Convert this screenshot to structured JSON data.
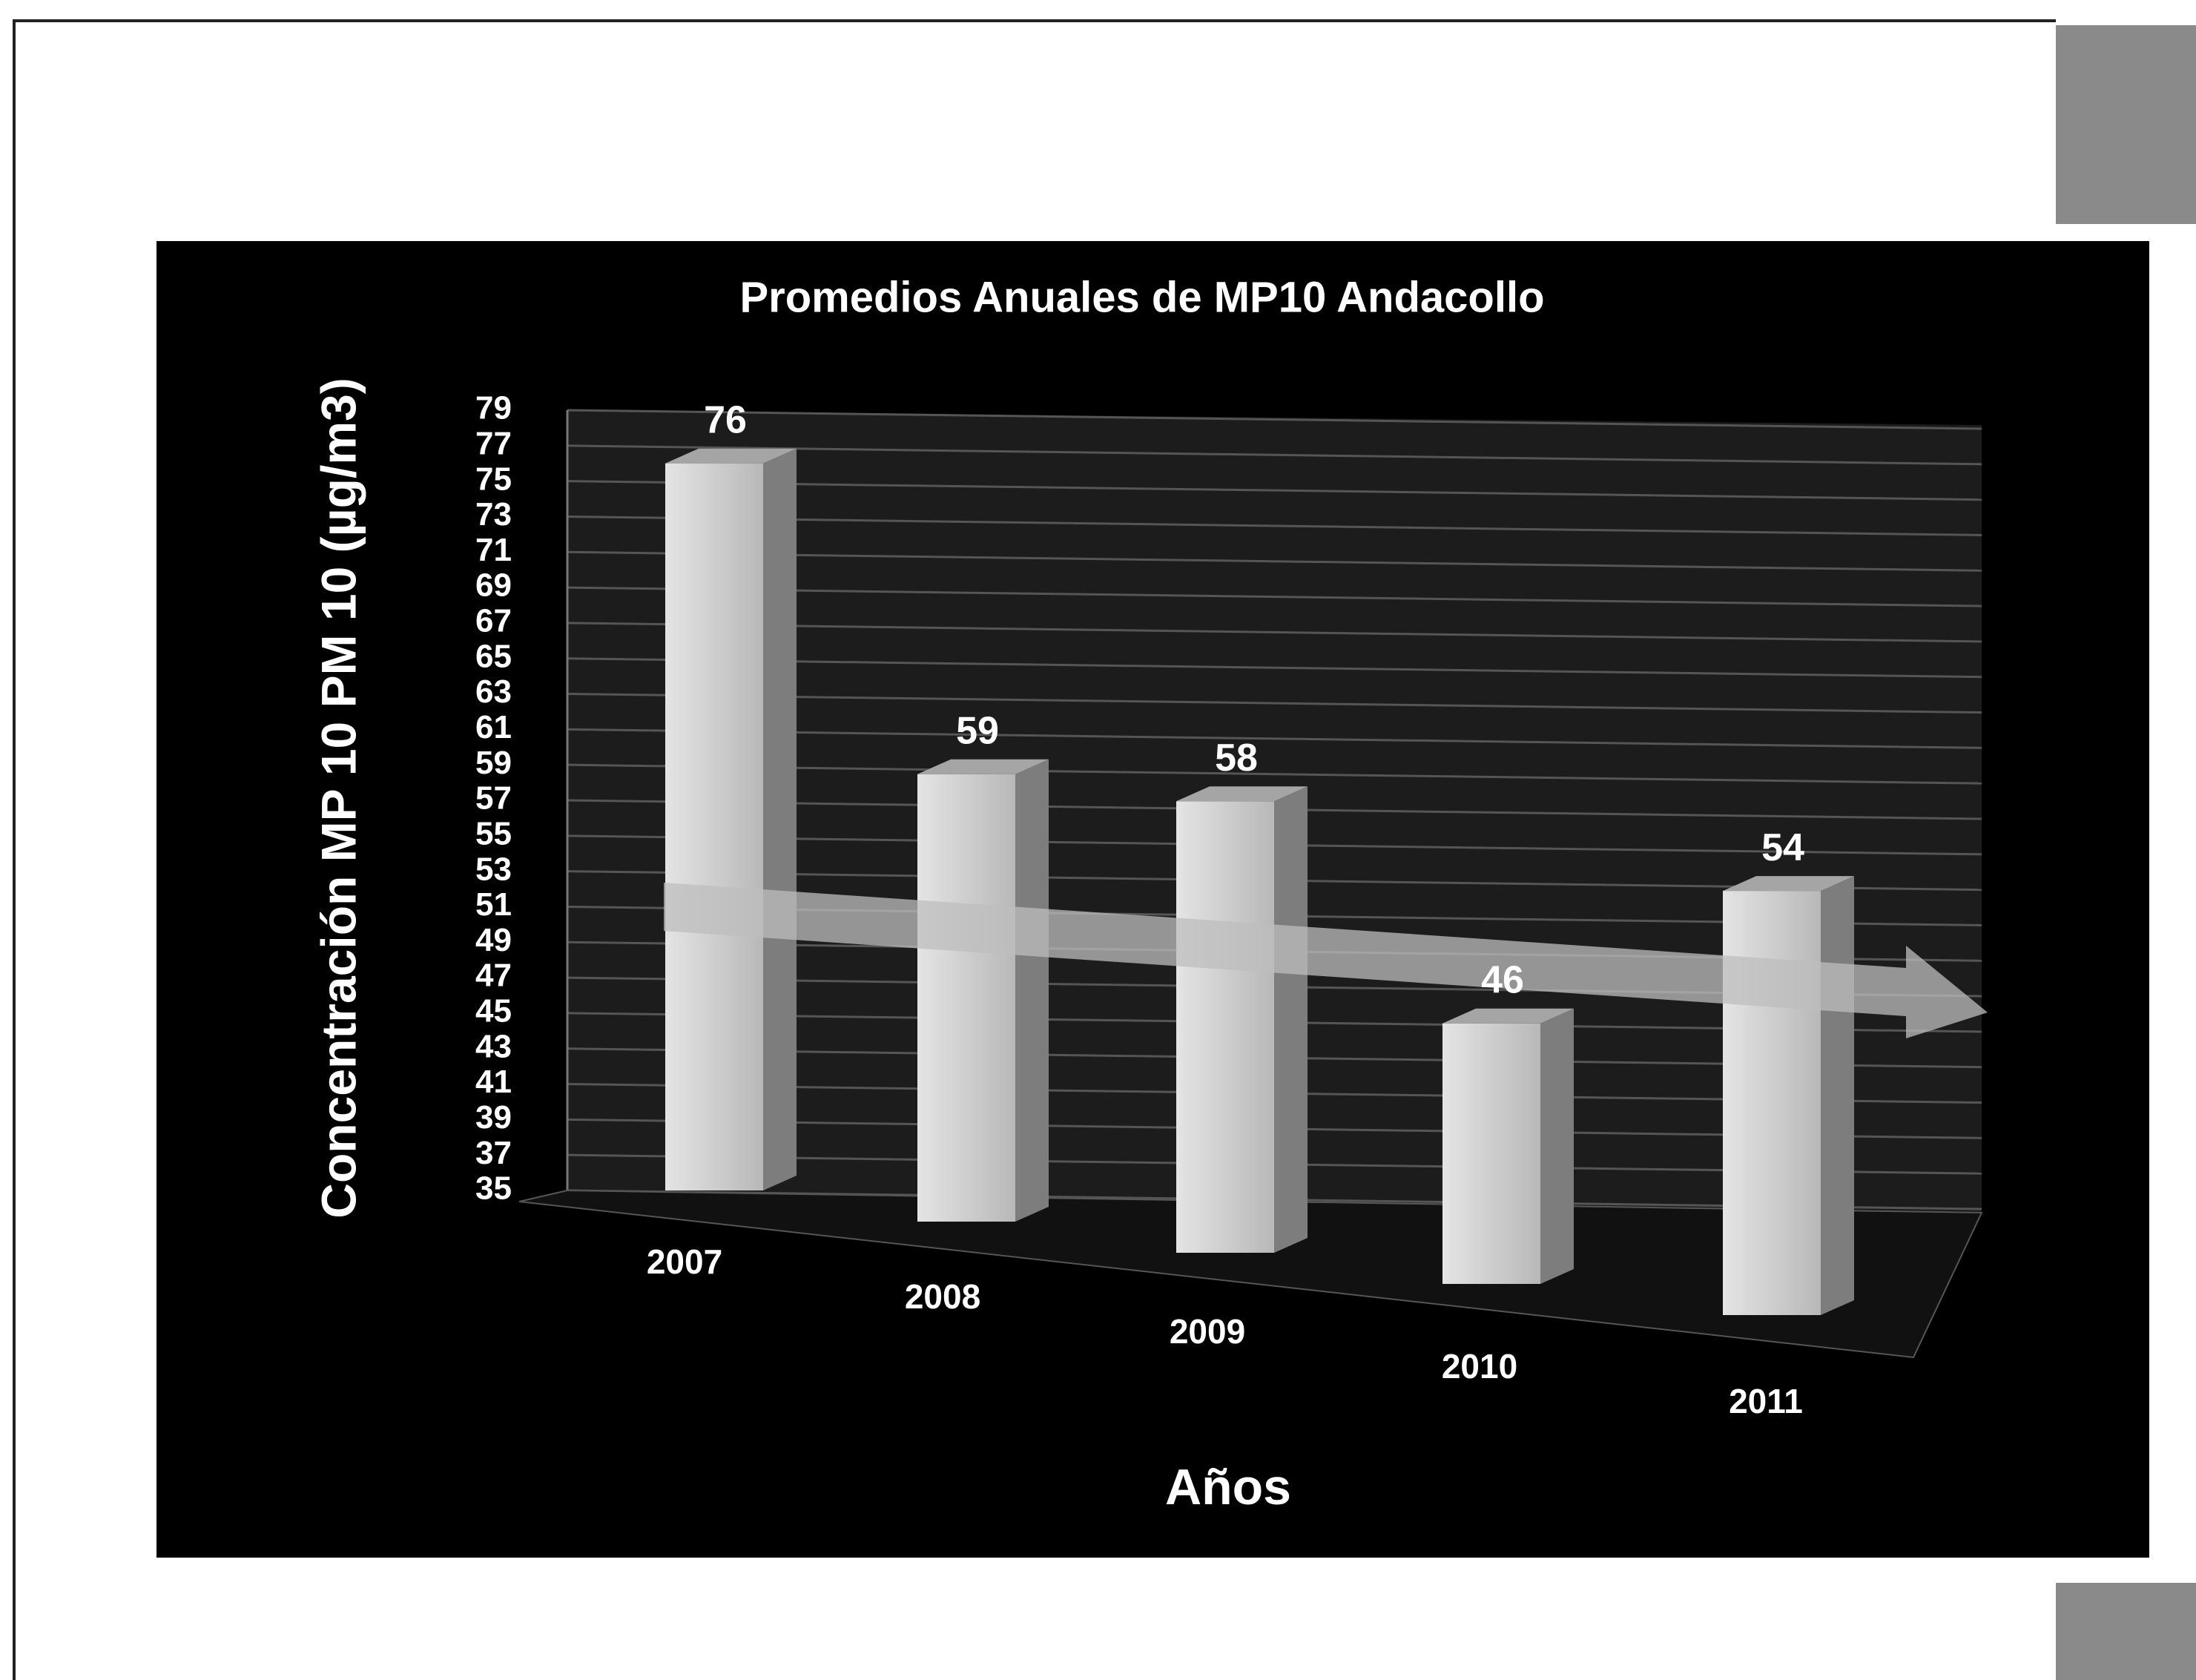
{
  "chart_data": {
    "type": "bar3d",
    "title": "Promedios Anuales de MP10 Andacollo",
    "x_label": "Años",
    "y_label": "Concentración MP 10 PM 10 (µg/m3)",
    "categories": [
      "2007",
      "2008",
      "2009",
      "2010",
      "2011"
    ],
    "values": [
      76,
      59,
      58,
      46,
      54
    ],
    "color": "#c9c9c9",
    "ylim": [
      35,
      79
    ],
    "yticks": [
      35,
      37,
      39,
      41,
      43,
      45,
      47,
      49,
      51,
      53,
      55,
      57,
      59,
      61,
      63,
      65,
      67,
      69,
      71,
      73,
      75,
      77,
      79
    ],
    "grid": true
  }
}
